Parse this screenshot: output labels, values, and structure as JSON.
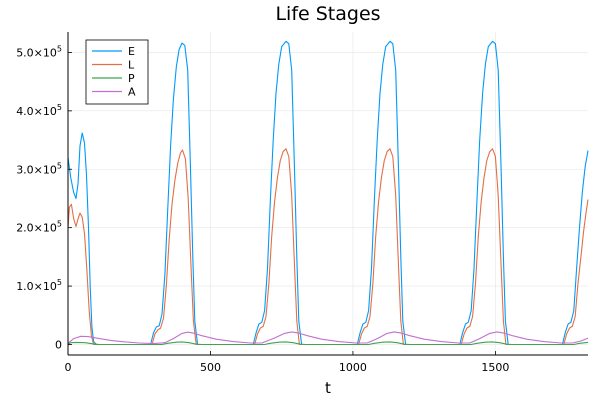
{
  "chart_data": {
    "type": "line",
    "title": "Life Stages",
    "xlabel": "t",
    "ylabel": "",
    "xlim": [
      0,
      1825
    ],
    "ylim": [
      -18000,
      535000
    ],
    "grid": true,
    "legend_position": "top-left",
    "x_ticks": [
      0,
      500,
      1000,
      1500
    ],
    "y_ticks": [
      {
        "value": 0,
        "label": "0"
      },
      {
        "value": 100000,
        "mantissa": "1.0",
        "exp": "5"
      },
      {
        "value": 200000,
        "mantissa": "2.0",
        "exp": "5"
      },
      {
        "value": 300000,
        "mantissa": "3.0",
        "exp": "5"
      },
      {
        "value": 400000,
        "mantissa": "4.0",
        "exp": "5"
      },
      {
        "value": 500000,
        "mantissa": "5.0",
        "exp": "5"
      }
    ],
    "series": [
      {
        "name": "E",
        "color": "#009AFA",
        "points": [
          [
            0,
            320000
          ],
          [
            10,
            285000
          ],
          [
            20,
            260000
          ],
          [
            28,
            250000
          ],
          [
            35,
            275000
          ],
          [
            42,
            340000
          ],
          [
            50,
            362000
          ],
          [
            58,
            345000
          ],
          [
            65,
            290000
          ],
          [
            72,
            200000
          ],
          [
            78,
            100000
          ],
          [
            84,
            30000
          ],
          [
            90,
            5000
          ],
          [
            100,
            0
          ],
          [
            290,
            0
          ],
          [
            300,
            20000
          ],
          [
            310,
            30000
          ],
          [
            320,
            32000
          ],
          [
            330,
            52000
          ],
          [
            340,
            120000
          ],
          [
            350,
            230000
          ],
          [
            360,
            340000
          ],
          [
            370,
            420000
          ],
          [
            380,
            475000
          ],
          [
            390,
            505000
          ],
          [
            400,
            516000
          ],
          [
            410,
            512000
          ],
          [
            420,
            470000
          ],
          [
            430,
            300000
          ],
          [
            438,
            150000
          ],
          [
            445,
            40000
          ],
          [
            455,
            0
          ],
          [
            650,
            0
          ],
          [
            660,
            20000
          ],
          [
            670,
            35000
          ],
          [
            680,
            38000
          ],
          [
            690,
            58000
          ],
          [
            700,
            130000
          ],
          [
            710,
            245000
          ],
          [
            720,
            350000
          ],
          [
            730,
            430000
          ],
          [
            740,
            480000
          ],
          [
            750,
            510000
          ],
          [
            765,
            519000
          ],
          [
            775,
            515000
          ],
          [
            785,
            470000
          ],
          [
            795,
            300000
          ],
          [
            803,
            150000
          ],
          [
            810,
            40000
          ],
          [
            820,
            0
          ],
          [
            1015,
            0
          ],
          [
            1025,
            20000
          ],
          [
            1035,
            35000
          ],
          [
            1045,
            38000
          ],
          [
            1055,
            58000
          ],
          [
            1065,
            130000
          ],
          [
            1075,
            245000
          ],
          [
            1085,
            350000
          ],
          [
            1095,
            430000
          ],
          [
            1105,
            480000
          ],
          [
            1115,
            510000
          ],
          [
            1130,
            519000
          ],
          [
            1140,
            515000
          ],
          [
            1150,
            470000
          ],
          [
            1160,
            300000
          ],
          [
            1168,
            150000
          ],
          [
            1175,
            40000
          ],
          [
            1185,
            0
          ],
          [
            1375,
            0
          ],
          [
            1385,
            20000
          ],
          [
            1395,
            35000
          ],
          [
            1405,
            38000
          ],
          [
            1415,
            58000
          ],
          [
            1425,
            130000
          ],
          [
            1435,
            245000
          ],
          [
            1445,
            350000
          ],
          [
            1455,
            430000
          ],
          [
            1465,
            480000
          ],
          [
            1475,
            510000
          ],
          [
            1490,
            519000
          ],
          [
            1500,
            515000
          ],
          [
            1510,
            470000
          ],
          [
            1520,
            300000
          ],
          [
            1528,
            150000
          ],
          [
            1535,
            40000
          ],
          [
            1545,
            0
          ],
          [
            1735,
            0
          ],
          [
            1745,
            20000
          ],
          [
            1755,
            35000
          ],
          [
            1765,
            38000
          ],
          [
            1775,
            58000
          ],
          [
            1785,
            130000
          ],
          [
            1795,
            200000
          ],
          [
            1805,
            260000
          ],
          [
            1815,
            305000
          ],
          [
            1825,
            332000
          ]
        ]
      },
      {
        "name": "L",
        "color": "#E26F46",
        "points": [
          [
            0,
            200000
          ],
          [
            5,
            235000
          ],
          [
            12,
            240000
          ],
          [
            20,
            215000
          ],
          [
            28,
            202000
          ],
          [
            35,
            215000
          ],
          [
            42,
            225000
          ],
          [
            50,
            218000
          ],
          [
            58,
            190000
          ],
          [
            66,
            130000
          ],
          [
            74,
            60000
          ],
          [
            82,
            15000
          ],
          [
            90,
            0
          ],
          [
            295,
            0
          ],
          [
            305,
            18000
          ],
          [
            315,
            25000
          ],
          [
            325,
            28000
          ],
          [
            335,
            45000
          ],
          [
            345,
            100000
          ],
          [
            355,
            180000
          ],
          [
            365,
            240000
          ],
          [
            375,
            280000
          ],
          [
            385,
            310000
          ],
          [
            395,
            328000
          ],
          [
            402,
            333000
          ],
          [
            412,
            318000
          ],
          [
            422,
            250000
          ],
          [
            432,
            130000
          ],
          [
            440,
            40000
          ],
          [
            450,
            0
          ],
          [
            655,
            0
          ],
          [
            665,
            18000
          ],
          [
            675,
            28000
          ],
          [
            685,
            31000
          ],
          [
            695,
            48000
          ],
          [
            705,
            105000
          ],
          [
            715,
            185000
          ],
          [
            725,
            245000
          ],
          [
            735,
            285000
          ],
          [
            745,
            315000
          ],
          [
            755,
            330000
          ],
          [
            765,
            335000
          ],
          [
            775,
            322000
          ],
          [
            785,
            255000
          ],
          [
            795,
            135000
          ],
          [
            803,
            40000
          ],
          [
            812,
            0
          ],
          [
            1020,
            0
          ],
          [
            1030,
            18000
          ],
          [
            1040,
            28000
          ],
          [
            1050,
            31000
          ],
          [
            1060,
            48000
          ],
          [
            1070,
            105000
          ],
          [
            1080,
            185000
          ],
          [
            1090,
            245000
          ],
          [
            1100,
            285000
          ],
          [
            1110,
            315000
          ],
          [
            1120,
            330000
          ],
          [
            1130,
            335000
          ],
          [
            1140,
            322000
          ],
          [
            1150,
            255000
          ],
          [
            1160,
            135000
          ],
          [
            1168,
            40000
          ],
          [
            1177,
            0
          ],
          [
            1380,
            0
          ],
          [
            1390,
            18000
          ],
          [
            1400,
            28000
          ],
          [
            1410,
            31000
          ],
          [
            1420,
            48000
          ],
          [
            1430,
            105000
          ],
          [
            1440,
            185000
          ],
          [
            1450,
            245000
          ],
          [
            1460,
            285000
          ],
          [
            1470,
            315000
          ],
          [
            1480,
            330000
          ],
          [
            1490,
            335000
          ],
          [
            1500,
            322000
          ],
          [
            1510,
            255000
          ],
          [
            1520,
            135000
          ],
          [
            1528,
            40000
          ],
          [
            1537,
            0
          ],
          [
            1740,
            0
          ],
          [
            1750,
            18000
          ],
          [
            1760,
            28000
          ],
          [
            1770,
            31000
          ],
          [
            1780,
            48000
          ],
          [
            1790,
            105000
          ],
          [
            1800,
            150000
          ],
          [
            1810,
            195000
          ],
          [
            1818,
            225000
          ],
          [
            1825,
            248000
          ]
        ]
      },
      {
        "name": "P",
        "color": "#3EA44E",
        "points": [
          [
            0,
            0
          ],
          [
            10,
            3000
          ],
          [
            30,
            3500
          ],
          [
            60,
            3000
          ],
          [
            90,
            1000
          ],
          [
            110,
            0
          ],
          [
            330,
            0
          ],
          [
            350,
            2000
          ],
          [
            380,
            4000
          ],
          [
            400,
            4500
          ],
          [
            425,
            3000
          ],
          [
            450,
            500
          ],
          [
            470,
            0
          ],
          [
            690,
            0
          ],
          [
            710,
            2000
          ],
          [
            740,
            4000
          ],
          [
            765,
            4500
          ],
          [
            790,
            3000
          ],
          [
            815,
            500
          ],
          [
            835,
            0
          ],
          [
            1055,
            0
          ],
          [
            1075,
            2000
          ],
          [
            1105,
            4000
          ],
          [
            1130,
            4500
          ],
          [
            1155,
            3000
          ],
          [
            1180,
            500
          ],
          [
            1200,
            0
          ],
          [
            1415,
            0
          ],
          [
            1435,
            2000
          ],
          [
            1465,
            4000
          ],
          [
            1490,
            4500
          ],
          [
            1515,
            3000
          ],
          [
            1540,
            500
          ],
          [
            1560,
            0
          ],
          [
            1775,
            0
          ],
          [
            1795,
            2000
          ],
          [
            1825,
            3500
          ]
        ]
      },
      {
        "name": "A",
        "color": "#C270D2",
        "points": [
          [
            0,
            2000
          ],
          [
            20,
            10000
          ],
          [
            45,
            14000
          ],
          [
            70,
            13500
          ],
          [
            100,
            11000
          ],
          [
            150,
            7000
          ],
          [
            200,
            4500
          ],
          [
            250,
            2500
          ],
          [
            300,
            1500
          ],
          [
            340,
            3000
          ],
          [
            370,
            10000
          ],
          [
            400,
            19000
          ],
          [
            420,
            21000
          ],
          [
            440,
            19500
          ],
          [
            470,
            15000
          ],
          [
            520,
            9000
          ],
          [
            580,
            5000
          ],
          [
            640,
            2500
          ],
          [
            680,
            2500
          ],
          [
            720,
            10000
          ],
          [
            760,
            19000
          ],
          [
            785,
            21500
          ],
          [
            810,
            19500
          ],
          [
            840,
            15000
          ],
          [
            890,
            9000
          ],
          [
            950,
            5000
          ],
          [
            1010,
            2500
          ],
          [
            1050,
            2500
          ],
          [
            1085,
            10000
          ],
          [
            1120,
            19000
          ],
          [
            1145,
            21500
          ],
          [
            1170,
            19500
          ],
          [
            1200,
            15000
          ],
          [
            1250,
            9000
          ],
          [
            1310,
            5000
          ],
          [
            1370,
            2500
          ],
          [
            1410,
            2500
          ],
          [
            1445,
            10000
          ],
          [
            1480,
            19000
          ],
          [
            1505,
            21500
          ],
          [
            1530,
            19500
          ],
          [
            1560,
            15000
          ],
          [
            1610,
            9000
          ],
          [
            1670,
            5000
          ],
          [
            1730,
            2500
          ],
          [
            1770,
            2500
          ],
          [
            1800,
            6000
          ],
          [
            1825,
            11000
          ]
        ]
      }
    ]
  }
}
